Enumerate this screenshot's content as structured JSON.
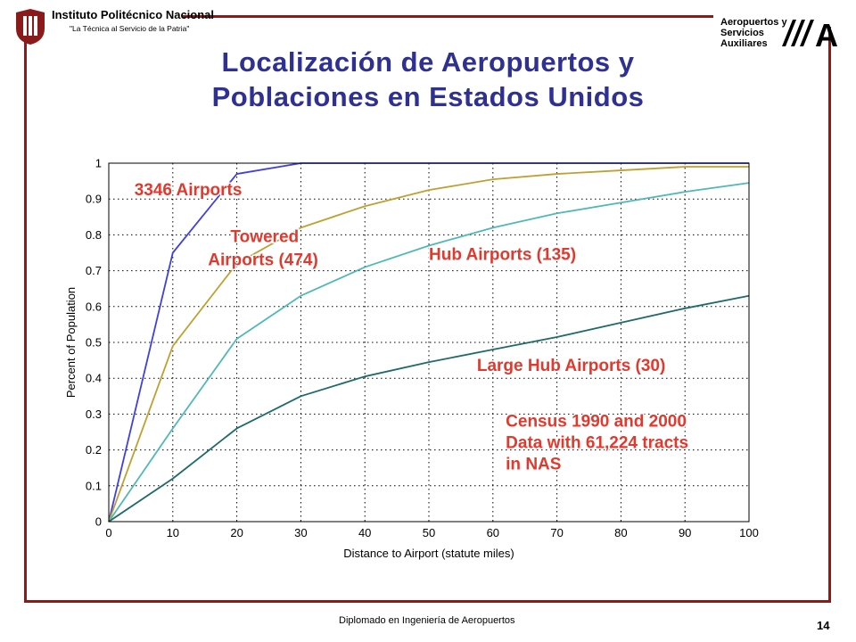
{
  "header": {
    "institution": "Instituto Politécnico Nacional",
    "motto": "\"La Técnica al Servicio de la Patria\"",
    "dept_line1": "Aeropuertos y",
    "dept_line2": "Servicios",
    "dept_line3": "Auxiliares",
    "dept_logo": "A"
  },
  "title_line1": "Localización de Aeropuertos y",
  "title_line2": "Poblaciones en Estados Unidos",
  "footer": {
    "text": "Diplomado en Ingeniería de Aeropuertos",
    "page": "14"
  },
  "colors": {
    "title": "#2e3192",
    "frame": "#8b1a1a",
    "annotation": "#e03a2f"
  },
  "chart_data": {
    "type": "line",
    "xlabel": "Distance to Airport (statute miles)",
    "ylabel": "Percent of Population",
    "xlim": [
      0,
      100
    ],
    "ylim": [
      0,
      1
    ],
    "xticks": [
      "0",
      "10",
      "20",
      "30",
      "40",
      "50",
      "60",
      "70",
      "80",
      "90",
      "100"
    ],
    "yticks": [
      "0",
      "0.1",
      "0.2",
      "0.3",
      "0.4",
      "0.5",
      "0.6",
      "0.7",
      "0.8",
      "0.9",
      "1"
    ],
    "grid": true,
    "x": [
      0,
      10,
      20,
      30,
      40,
      50,
      60,
      70,
      80,
      90,
      100
    ],
    "series": [
      {
        "name": "3346 Airports",
        "color": "#4040e0",
        "values": [
          0,
          0.75,
          0.97,
          1.0,
          1.0,
          1.0,
          1.0,
          1.0,
          1.0,
          1.0,
          1.0
        ]
      },
      {
        "name": "Towered Airports (474)",
        "color": "#c0a030",
        "values": [
          0,
          0.49,
          0.72,
          0.82,
          0.88,
          0.925,
          0.955,
          0.97,
          0.98,
          0.99,
          0.99
        ]
      },
      {
        "name": "Hub Airports (135)",
        "color": "#50b8b8",
        "values": [
          0,
          0.26,
          0.51,
          0.63,
          0.71,
          0.77,
          0.82,
          0.86,
          0.89,
          0.92,
          0.945
        ]
      },
      {
        "name": "Large Hub Airports (30)",
        "color": "#1f6a6a",
        "values": [
          0,
          0.12,
          0.26,
          0.35,
          0.405,
          0.445,
          0.48,
          0.515,
          0.555,
          0.595,
          0.63
        ]
      }
    ],
    "annotations": [
      {
        "text": "3346 Airports",
        "x": 4,
        "y": 0.91
      },
      {
        "text": "Towered",
        "x": 19,
        "y": 0.78
      },
      {
        "text": "Airports (474)",
        "x": 15.5,
        "y": 0.715
      },
      {
        "text": "Hub Airports (135)",
        "x": 50,
        "y": 0.73
      },
      {
        "text": "Large Hub Airports (30)",
        "x": 57.5,
        "y": 0.42
      },
      {
        "text": "Census 1990 and 2000",
        "x": 62,
        "y": 0.265
      },
      {
        "text": "Data with 61,224 tracts",
        "x": 62,
        "y": 0.205
      },
      {
        "text": "in NAS",
        "x": 62,
        "y": 0.145
      }
    ]
  }
}
